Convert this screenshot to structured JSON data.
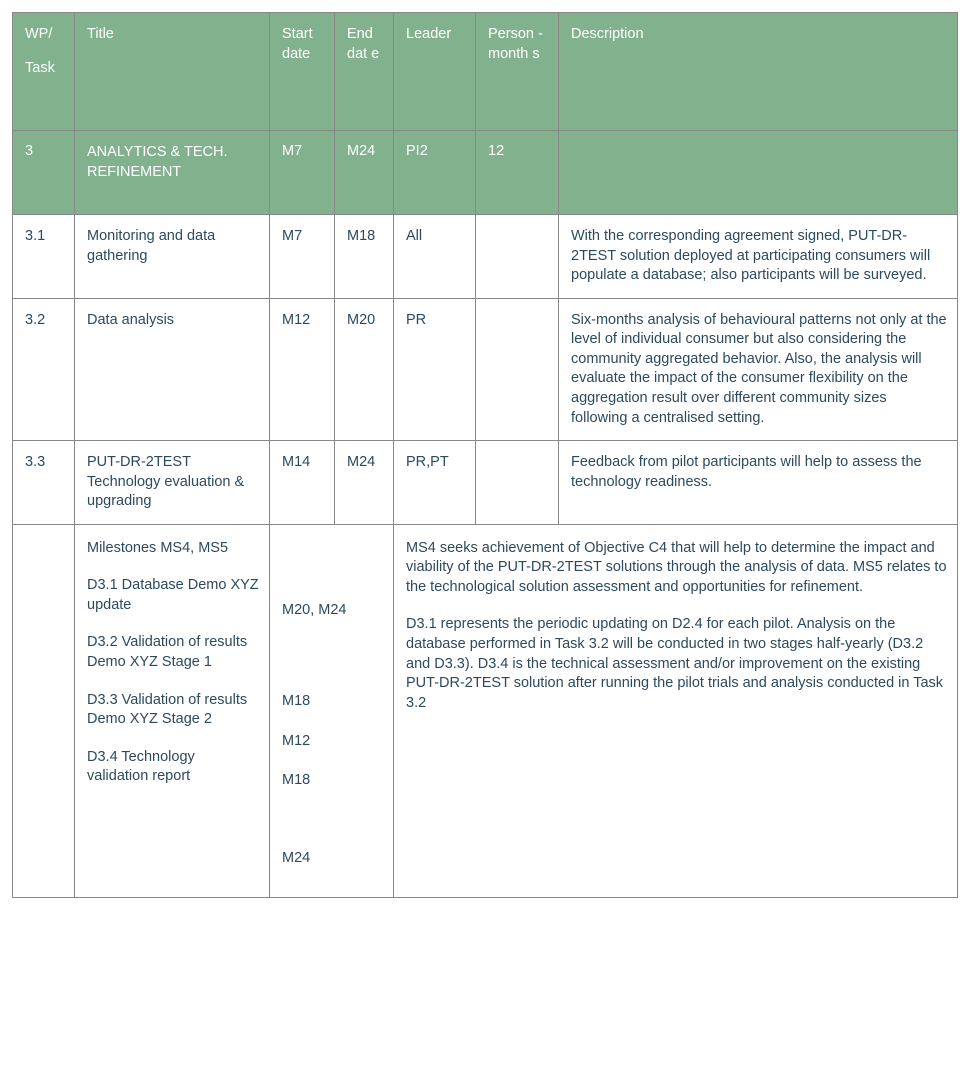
{
  "colors": {
    "header_bg": "#81b18d",
    "header_text": "#ffffff",
    "body_text": "#2c4a5e",
    "border": "#888888",
    "page_bg": "#ffffff"
  },
  "columns": {
    "wp_top": "WP/",
    "wp_sub": "Task",
    "title": "Title",
    "start": "Start date",
    "end": "End dat e",
    "leader": "Leader",
    "pm": "Person - month s",
    "desc": "Description"
  },
  "summary": {
    "id": "3",
    "title": "ANALYTICS & TECH. REFINEMENT",
    "start": "M7",
    "end": "M24",
    "leader": "PI2",
    "pm": "12",
    "desc": ""
  },
  "tasks": [
    {
      "id": "3.1",
      "title": "Monitoring and data gathering",
      "start": "M7",
      "end": "M18",
      "leader": "All",
      "pm": "",
      "desc": "With the corresponding agreement signed, PUT-DR-2TEST solution deployed at participating consumers will populate a database; also participants will be surveyed."
    },
    {
      "id": "3.2",
      "title": "Data analysis",
      "start": "M12",
      "end": "M20",
      "leader": "PR",
      "pm": "",
      "desc": "Six-months analysis of behavioural patterns not only at the level of individual consumer but also considering the community aggregated behavior. Also, the analysis will evaluate the impact of the consumer flexibility on the aggregation result over different community sizes following a centralised setting."
    },
    {
      "id": "3.3",
      "title": "PUT-DR-2TEST Technology evaluation & upgrading",
      "start": "M14",
      "end": "M24",
      "leader": "PR,PT",
      "pm": "",
      "desc": "Feedback from pilot participants will help to assess the technology readiness."
    }
  ],
  "deliverables": {
    "left": [
      "Milestones MS4, MS5",
      "D3.1 Database Demo XYZ update",
      "D3.2 Validation of results Demo XYZ Stage 1",
      "D3.3 Validation of results Demo XYZ Stage 2",
      "D3.4 Technology validation report"
    ],
    "dates": [
      "M20, M24",
      "M18",
      "M12",
      "M18",
      "M24"
    ],
    "text": [
      "MS4 seeks achievement of Objective C4 that will help to determine the impact and viability of the PUT-DR-2TEST solutions through the analysis of data. MS5 relates to the technological solution assessment and opportunities for refinement.",
      "D3.1 represents the periodic updating on D2.4 for each pilot. Analysis on the database performed in Task 3.2 will be conducted in two stages half-yearly (D3.2 and D3.3). D3.4 is the technical assessment and/or improvement on the existing PUT-DR-2TEST solution after running the pilot trials and analysis conducted in Task 3.2"
    ]
  }
}
